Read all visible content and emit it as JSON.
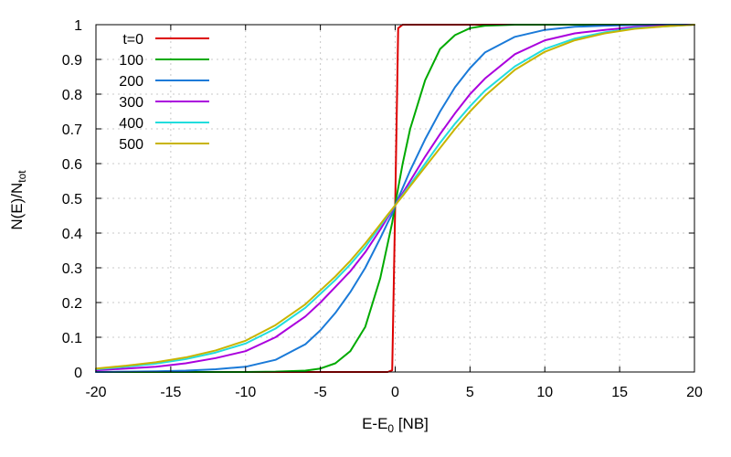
{
  "chart_data": {
    "type": "line",
    "xlabel": "E-E",
    "xlabel_sub": "0",
    "xlabel_unit": " [NB]",
    "ylabel": "N(E)/N",
    "ylabel_sub": "tot",
    "xlim": [
      -20,
      20
    ],
    "ylim": [
      0,
      1
    ],
    "x_ticks": [
      -20,
      -15,
      -10,
      -5,
      0,
      5,
      10,
      15,
      20
    ],
    "y_ticks": [
      0,
      0.1,
      0.2,
      0.3,
      0.4,
      0.5,
      0.6,
      0.7,
      0.8,
      0.9,
      1
    ],
    "y_tick_labels": [
      "0",
      "0.1",
      "0.2",
      "0.3",
      "0.4",
      "0.5",
      "0.6",
      "0.7",
      "0.8",
      "0.9",
      "1"
    ],
    "grid": true,
    "legend_position": "top-left",
    "x": [
      -20,
      -18,
      -16,
      -14,
      -12,
      -10,
      -8,
      -6,
      -5,
      -4,
      -3,
      -2,
      -1,
      -0.5,
      -0.2,
      0,
      0.2,
      0.5,
      1,
      2,
      3,
      4,
      5,
      6,
      8,
      10,
      12,
      14,
      16,
      18,
      20
    ],
    "series": [
      {
        "name": "t=0",
        "color": "#dd0000",
        "values": [
          0,
          0,
          0,
          0,
          0,
          0,
          0,
          0,
          0,
          0,
          0,
          0,
          0,
          0,
          0.005,
          0.48,
          0.99,
          1,
          1,
          1,
          1,
          1,
          1,
          1,
          1,
          1,
          1,
          1,
          1,
          1,
          1
        ]
      },
      {
        "name": "100",
        "color": "#00aa00",
        "values": [
          0,
          0,
          0,
          0,
          0,
          0,
          0.001,
          0.004,
          0.01,
          0.025,
          0.06,
          0.13,
          0.27,
          0.37,
          0.43,
          0.48,
          0.53,
          0.6,
          0.7,
          0.84,
          0.93,
          0.97,
          0.99,
          0.997,
          1,
          1,
          1,
          1,
          1,
          1,
          1
        ]
      },
      {
        "name": "200",
        "color": "#1a7ad8",
        "values": [
          0,
          0.001,
          0.002,
          0.004,
          0.008,
          0.015,
          0.035,
          0.08,
          0.12,
          0.17,
          0.23,
          0.3,
          0.385,
          0.43,
          0.455,
          0.48,
          0.5,
          0.53,
          0.58,
          0.67,
          0.75,
          0.82,
          0.875,
          0.92,
          0.965,
          0.985,
          0.994,
          0.997,
          0.999,
          1,
          1
        ]
      },
      {
        "name": "300",
        "color": "#aa00dd",
        "values": [
          0.005,
          0.01,
          0.015,
          0.025,
          0.04,
          0.06,
          0.1,
          0.16,
          0.2,
          0.245,
          0.29,
          0.345,
          0.41,
          0.445,
          0.465,
          0.48,
          0.495,
          0.515,
          0.55,
          0.62,
          0.685,
          0.745,
          0.8,
          0.845,
          0.915,
          0.955,
          0.975,
          0.985,
          0.993,
          0.997,
          1
        ]
      },
      {
        "name": "400",
        "color": "#22dddd",
        "values": [
          0.008,
          0.015,
          0.024,
          0.037,
          0.056,
          0.082,
          0.125,
          0.185,
          0.225,
          0.265,
          0.31,
          0.36,
          0.42,
          0.45,
          0.468,
          0.48,
          0.492,
          0.51,
          0.54,
          0.6,
          0.66,
          0.715,
          0.765,
          0.81,
          0.88,
          0.93,
          0.96,
          0.978,
          0.99,
          0.995,
          1
        ]
      },
      {
        "name": "500",
        "color": "#c8b400",
        "values": [
          0.01,
          0.018,
          0.028,
          0.042,
          0.062,
          0.09,
          0.135,
          0.195,
          0.235,
          0.275,
          0.32,
          0.37,
          0.425,
          0.453,
          0.469,
          0.48,
          0.491,
          0.507,
          0.535,
          0.59,
          0.645,
          0.7,
          0.75,
          0.795,
          0.87,
          0.922,
          0.955,
          0.975,
          0.988,
          0.995,
          1
        ]
      }
    ]
  }
}
